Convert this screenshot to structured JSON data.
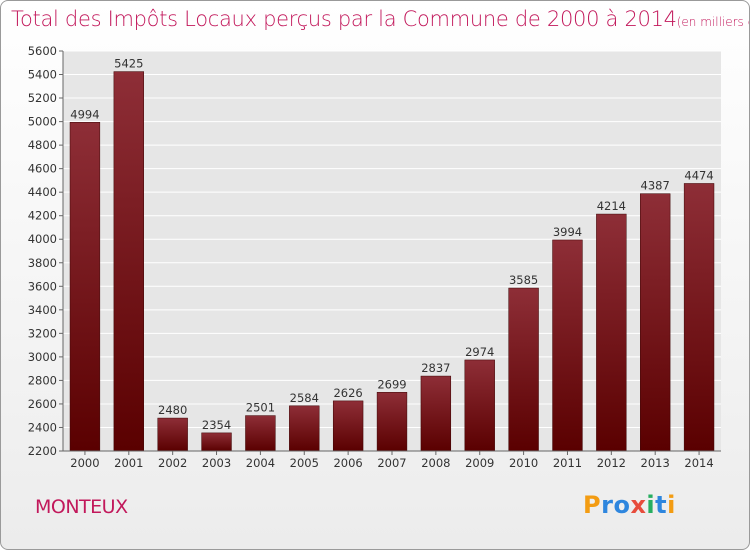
{
  "title": {
    "main": "Total des Impôts Locaux perçus par la Commune de 2000 à 2014",
    "unit": "(en milliers d'€)"
  },
  "commune": "MONTEUX",
  "logo": {
    "letters": [
      {
        "char": "P",
        "color": "#f39c12"
      },
      {
        "char": "r",
        "color": "#2e86de"
      },
      {
        "char": "o",
        "color": "#2e86de"
      },
      {
        "char": "x",
        "color": "#e74c3c"
      },
      {
        "char": "i",
        "color": "#27ae60"
      },
      {
        "char": "t",
        "color": "#2e86de"
      },
      {
        "char": "i",
        "color": "#f39c12"
      }
    ]
  },
  "colors": {
    "bar_top": "#8e2e37",
    "bar_bottom": "#5a0000",
    "title": "#c2185b",
    "grid": "#ffffff"
  },
  "chart_data": {
    "type": "bar",
    "title": "Total des Impôts Locaux perçus par la Commune de 2000 à 2014",
    "xlabel": "",
    "ylabel": "",
    "categories": [
      "2000",
      "2001",
      "2002",
      "2003",
      "2004",
      "2005",
      "2006",
      "2007",
      "2008",
      "2009",
      "2010",
      "2011",
      "2012",
      "2013",
      "2014"
    ],
    "values": [
      4994,
      5425,
      2480,
      2354,
      2501,
      2584,
      2626,
      2699,
      2837,
      2974,
      3585,
      3994,
      4214,
      4387,
      4474
    ],
    "ylim": [
      2200,
      5600
    ],
    "yticks": [
      2200,
      2400,
      2600,
      2800,
      3000,
      3200,
      3400,
      3600,
      3800,
      4000,
      4200,
      4400,
      4600,
      4800,
      5000,
      5200,
      5400,
      5600
    ],
    "grid": true,
    "data_labels": true
  }
}
